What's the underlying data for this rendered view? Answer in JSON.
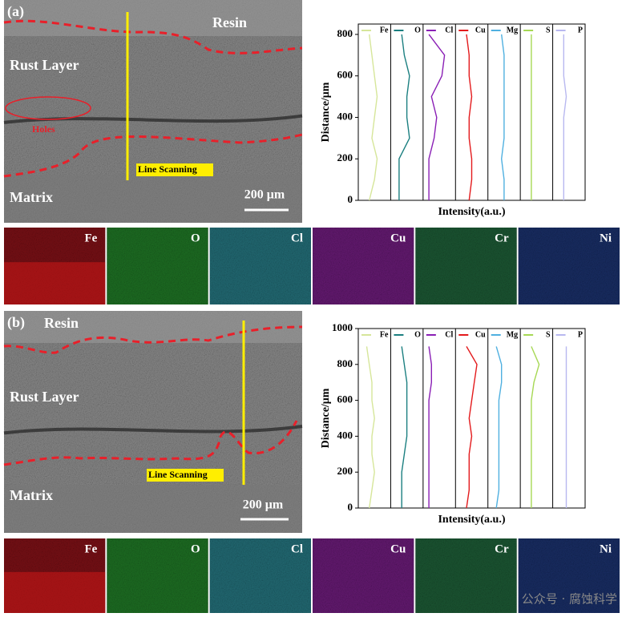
{
  "panels": [
    {
      "label": "(a)",
      "annotations": [
        "Resin",
        "Rust Layer",
        "Holes",
        "Line Scanning",
        "Matrix"
      ],
      "scale_bar": "200 μm",
      "maps": [
        {
          "label": "Fe",
          "color": "#d81818"
        },
        {
          "label": "O",
          "color": "#33c633"
        },
        {
          "label": "Cl",
          "color": "#3bbfc6"
        },
        {
          "label": "Cu",
          "color": "#b52cc2"
        },
        {
          "label": "Cr",
          "color": "#2f9a4f"
        },
        {
          "label": "Ni",
          "color": "#2a4fa8"
        }
      ]
    },
    {
      "label": "(b)",
      "annotations": [
        "Resin",
        "Rust Layer",
        "Line Scanning",
        "Matrix"
      ],
      "scale_bar": "200 μm",
      "maps": [
        {
          "label": "Fe",
          "color": "#d81818"
        },
        {
          "label": "O",
          "color": "#33c633"
        },
        {
          "label": "Cl",
          "color": "#3bbfc6"
        },
        {
          "label": "Cu",
          "color": "#b52cc2"
        },
        {
          "label": "Cr",
          "color": "#2f9a4f"
        },
        {
          "label": "Ni",
          "color": "#2a4fa8"
        }
      ]
    }
  ],
  "watermark": "公众号 · 腐蚀科学",
  "chart_data": [
    {
      "type": "line",
      "ylabel": "Distance/μm",
      "xlabel": "Intensity(a.u.)",
      "ylim": [
        0,
        850
      ],
      "yticks": [
        0,
        200,
        400,
        600,
        800
      ],
      "y": [
        0,
        100,
        200,
        300,
        400,
        500,
        600,
        700,
        800
      ],
      "series": [
        {
          "name": "Fe",
          "color": "#d6e69a",
          "values": [
            0.3,
            0.5,
            0.6,
            0.4,
            0.5,
            0.6,
            0.5,
            0.4,
            0.3
          ]
        },
        {
          "name": "O",
          "color": "#1b7f80",
          "values": [
            0.2,
            0.2,
            0.2,
            0.6,
            0.5,
            0.5,
            0.6,
            0.4,
            0.3
          ]
        },
        {
          "name": "Cl",
          "color": "#8a1fb5",
          "values": [
            0.1,
            0.1,
            0.1,
            0.3,
            0.4,
            0.2,
            0.6,
            0.7,
            0.1
          ]
        },
        {
          "name": "Cu",
          "color": "#e31a1c",
          "values": [
            0.4,
            0.5,
            0.5,
            0.4,
            0.4,
            0.5,
            0.4,
            0.4,
            0.3
          ]
        },
        {
          "name": "Mg",
          "color": "#4fb0e0",
          "values": [
            0.5,
            0.5,
            0.4,
            0.5,
            0.5,
            0.5,
            0.5,
            0.5,
            0.4
          ]
        },
        {
          "name": "S",
          "color": "#a6d854",
          "values": [
            0.3,
            0.3,
            0.3,
            0.3,
            0.3,
            0.3,
            0.3,
            0.3,
            0.3
          ]
        },
        {
          "name": "P",
          "color": "#b8b8f0",
          "values": [
            0.3,
            0.3,
            0.3,
            0.3,
            0.3,
            0.4,
            0.3,
            0.3,
            0.3
          ]
        }
      ]
    },
    {
      "type": "line",
      "ylabel": "Distance/μm",
      "xlabel": "Intensity(a.u.)",
      "ylim": [
        0,
        1000
      ],
      "yticks": [
        0,
        200,
        400,
        600,
        800,
        1000
      ],
      "y": [
        0,
        100,
        200,
        300,
        400,
        500,
        600,
        700,
        800,
        900
      ],
      "series": [
        {
          "name": "Fe",
          "color": "#d6e69a",
          "values": [
            0.3,
            0.4,
            0.5,
            0.4,
            0.4,
            0.5,
            0.4,
            0.4,
            0.3,
            0.2
          ]
        },
        {
          "name": "O",
          "color": "#1b7f80",
          "values": [
            0.3,
            0.3,
            0.3,
            0.4,
            0.5,
            0.5,
            0.5,
            0.5,
            0.4,
            0.3
          ]
        },
        {
          "name": "Cl",
          "color": "#8a1fb5",
          "values": [
            0.1,
            0.1,
            0.1,
            0.1,
            0.1,
            0.1,
            0.1,
            0.2,
            0.2,
            0.1
          ]
        },
        {
          "name": "Cu",
          "color": "#e31a1c",
          "values": [
            0.3,
            0.4,
            0.4,
            0.4,
            0.5,
            0.4,
            0.5,
            0.6,
            0.7,
            0.3
          ]
        },
        {
          "name": "Mg",
          "color": "#4fb0e0",
          "values": [
            0.2,
            0.3,
            0.3,
            0.3,
            0.3,
            0.3,
            0.3,
            0.4,
            0.4,
            0.2
          ]
        },
        {
          "name": "S",
          "color": "#a6d854",
          "values": [
            0.3,
            0.3,
            0.3,
            0.3,
            0.3,
            0.3,
            0.3,
            0.4,
            0.6,
            0.3
          ]
        },
        {
          "name": "P",
          "color": "#b8b8f0",
          "values": [
            0.4,
            0.4,
            0.4,
            0.4,
            0.4,
            0.4,
            0.4,
            0.4,
            0.4,
            0.4
          ]
        }
      ]
    }
  ]
}
